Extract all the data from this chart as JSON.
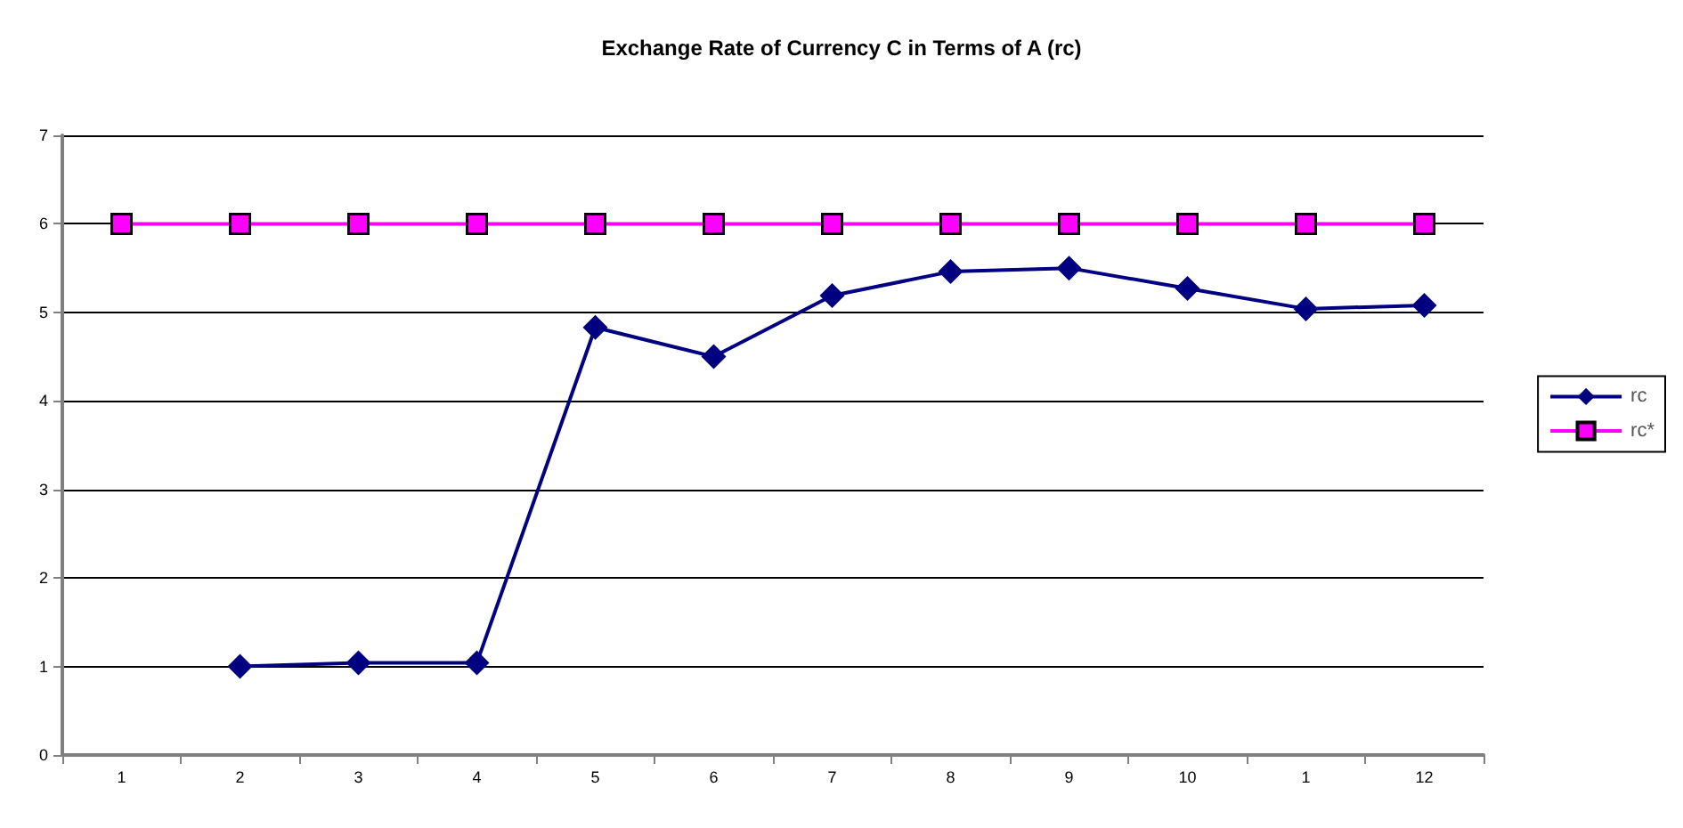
{
  "chart_data": {
    "type": "line",
    "title": "Exchange Rate of Currency C in Terms of A (rc)",
    "categories": [
      "1",
      "2",
      "3",
      "4",
      "5",
      "6",
      "7",
      "8",
      "9",
      "10",
      "1",
      "12"
    ],
    "series": [
      {
        "name": "rc",
        "color": "#000080",
        "marker": "diamond",
        "values": [
          null,
          1,
          1.04,
          1.04,
          4.83,
          4.5,
          5.19,
          5.46,
          5.5,
          5.27,
          5.04,
          5.08
        ]
      },
      {
        "name": "rc*",
        "color": "#ff00ff",
        "marker": "square",
        "values": [
          6,
          6,
          6,
          6,
          6,
          6,
          6,
          6,
          6,
          6,
          6,
          6
        ]
      }
    ],
    "ylim": [
      0,
      7
    ],
    "yticks": [
      0,
      1,
      2,
      3,
      4,
      5,
      6,
      7
    ],
    "grid": "y",
    "legend": "right"
  }
}
